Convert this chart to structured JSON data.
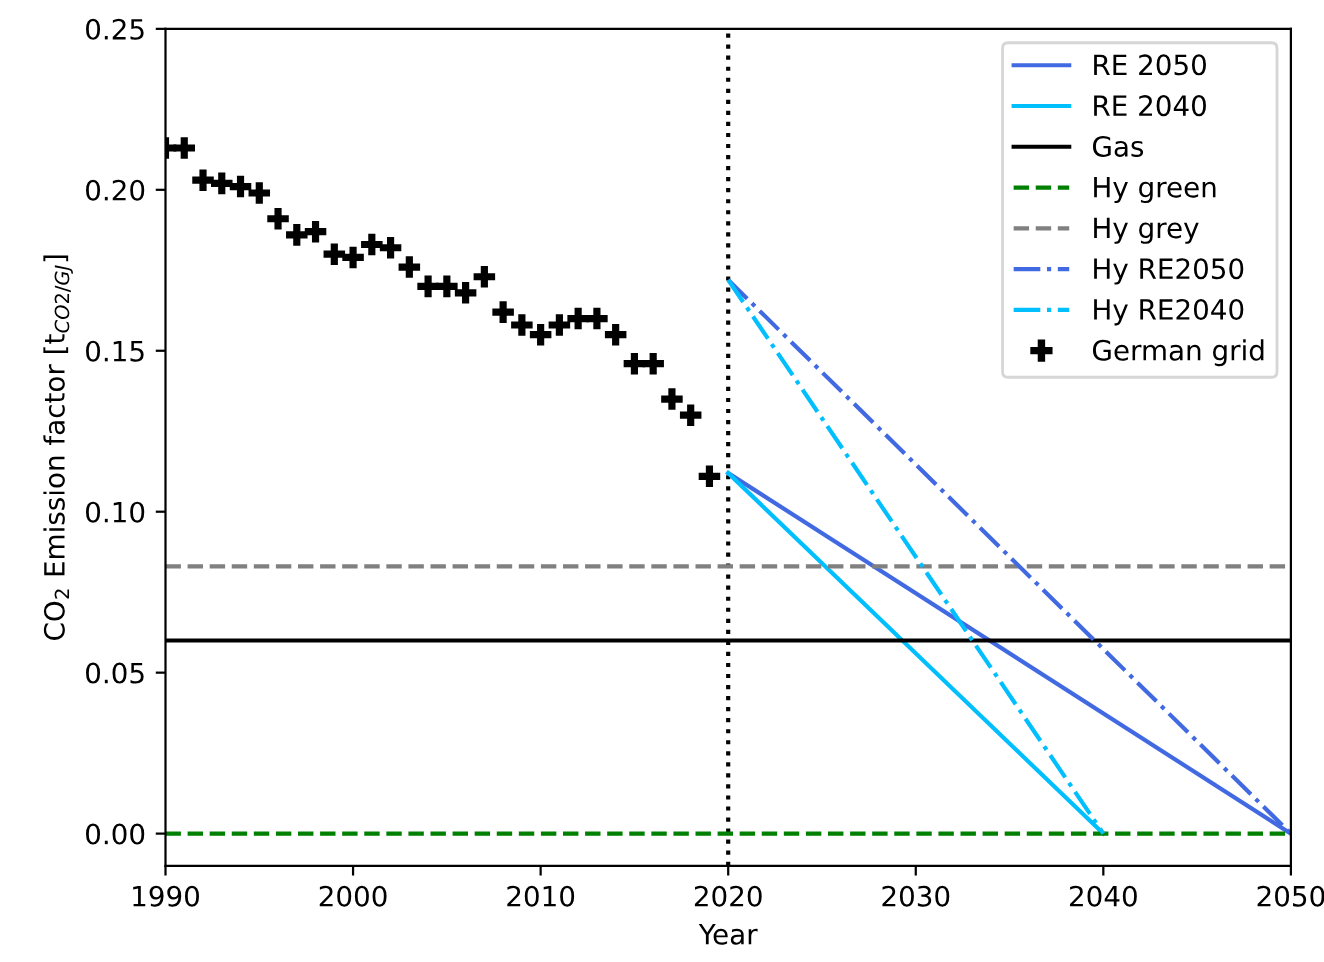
{
  "chart_data": {
    "type": "line",
    "xlabel": "Year",
    "ylabel": "CO$_{2}$ Emission factor [t$_{CO2/GJ}$]",
    "xlim": [
      1990,
      2050
    ],
    "xticks": [
      1990,
      2000,
      2010,
      2020,
      2030,
      2040,
      2050
    ],
    "ylim": [
      -0.01,
      0.25
    ],
    "yticks": [
      {
        "value": 0,
        "label": "0.00"
      },
      0.05,
      {
        "value": 0.1,
        "label": "0.10"
      },
      0.15,
      {
        "value": 0.2,
        "label": "0.20"
      },
      0.25
    ],
    "grid": false,
    "legend": "top right",
    "ref_lines": [
      {
        "axis": "x",
        "value": 2020,
        "color": "#000000",
        "line_style": "dotted"
      }
    ],
    "series": [
      {
        "name": "RE 2050",
        "color": "#4169e1",
        "line_style": "solid",
        "x": [
          2020,
          2050
        ],
        "values": [
          0.112,
          0
        ]
      },
      {
        "name": "RE 2040",
        "color": "#00bfff",
        "line_style": "solid",
        "x": [
          2020,
          2040
        ],
        "values": [
          0.112,
          0
        ]
      },
      {
        "name": "Gas",
        "color": "#000000",
        "line_style": "solid",
        "x": [
          1990,
          2050
        ],
        "values": [
          0.06,
          0.06
        ]
      },
      {
        "name": "Hy green",
        "color": "#008000",
        "line_style": "dashed",
        "x": [
          1990,
          2050
        ],
        "values": [
          0,
          0
        ]
      },
      {
        "name": "Hy grey",
        "color": "#808080",
        "line_style": "dashed",
        "x": [
          1990,
          2050
        ],
        "values": [
          0.083,
          0.083
        ]
      },
      {
        "name": "Hy RE2050",
        "color": "#4169e1",
        "line_style": "dashdot",
        "x": [
          2020,
          2050
        ],
        "values": [
          0.172,
          0
        ]
      },
      {
        "name": "Hy RE2040",
        "color": "#00bfff",
        "line_style": "dashdot",
        "x": [
          2020,
          2040
        ],
        "values": [
          0.172,
          0
        ]
      },
      {
        "name": "German grid",
        "type": "scatter",
        "marker": "cross",
        "color": "#000000",
        "x": [
          1990,
          1991,
          1992,
          1993,
          1994,
          1995,
          1996,
          1997,
          1998,
          1999,
          2000,
          2001,
          2002,
          2003,
          2004,
          2005,
          2006,
          2007,
          2008,
          2009,
          2010,
          2011,
          2012,
          2013,
          2014,
          2015,
          2016,
          2017,
          2018,
          2019
        ],
        "values": [
          0.213,
          0.213,
          0.203,
          0.202,
          0.201,
          0.199,
          0.191,
          0.186,
          0.187,
          0.18,
          0.179,
          0.183,
          0.182,
          0.176,
          0.17,
          0.17,
          0.168,
          0.173,
          0.162,
          0.158,
          0.155,
          0.158,
          0.16,
          0.16,
          0.155,
          0.146,
          0.146,
          0.135,
          0.13,
          0.111
        ]
      }
    ]
  }
}
